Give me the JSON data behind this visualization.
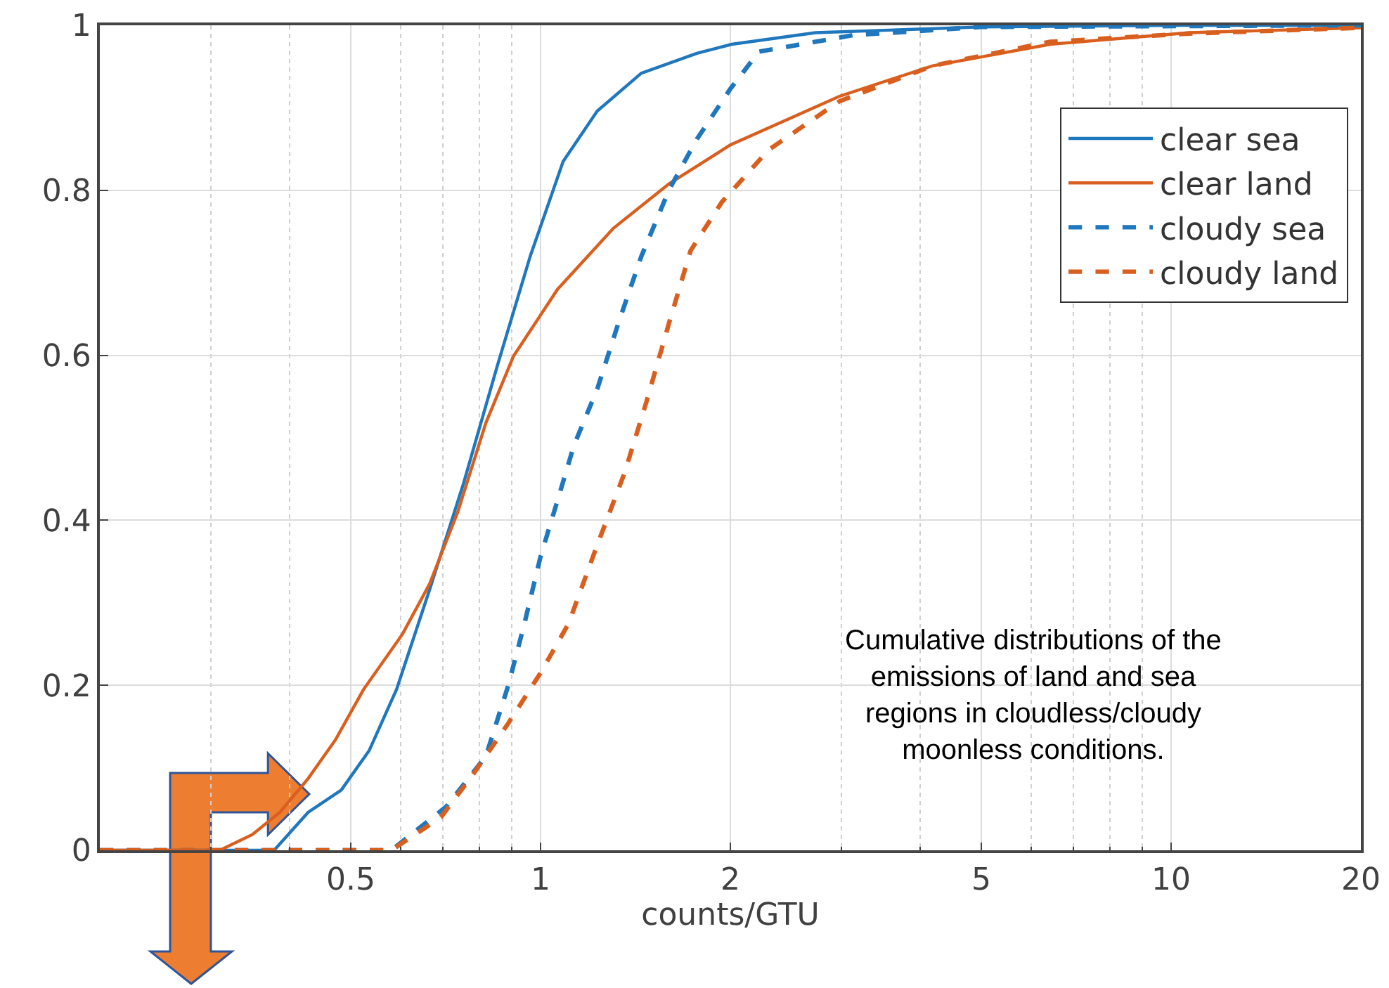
{
  "chart_data": {
    "type": "line",
    "xlabel": "counts/GTU",
    "log": "x",
    "grid": true,
    "legend": "top right",
    "xlim": [
      0.2,
      20
    ],
    "ylim": [
      0,
      1
    ],
    "xticks": [
      {
        "value": 0.3,
        "label": null
      },
      {
        "value": 0.4,
        "label": null
      },
      0.5,
      {
        "value": 0.6,
        "label": null
      },
      {
        "value": 0.7,
        "label": null
      },
      {
        "value": 0.8,
        "label": null
      },
      {
        "value": 0.9,
        "label": null
      },
      1,
      2,
      {
        "value": 3,
        "label": null
      },
      {
        "value": 4,
        "label": null
      },
      5,
      {
        "value": 6,
        "label": null
      },
      {
        "value": 7,
        "label": null
      },
      {
        "value": 8,
        "label": null
      },
      {
        "value": 9,
        "label": null
      },
      10,
      20
    ],
    "yticks": [
      0,
      0.2,
      0.4,
      0.6,
      0.8,
      1
    ],
    "series": [
      {
        "name": "clear sea",
        "color": "#1f77bd",
        "line_style": "solid",
        "x": [
          0.2,
          0.33,
          0.378,
          0.428,
          0.483,
          0.535,
          0.591,
          0.667,
          0.755,
          0.853,
          0.963,
          1.086,
          1.23,
          1.445,
          1.77,
          2.01,
          2.73,
          5,
          10,
          20
        ],
        "values": [
          0,
          0,
          0,
          0.046,
          0.073,
          0.121,
          0.195,
          0.316,
          0.445,
          0.586,
          0.72,
          0.835,
          0.896,
          0.942,
          0.966,
          0.977,
          0.991,
          0.998,
          1,
          1
        ]
      },
      {
        "name": "clear land",
        "color": "#d95f1f",
        "line_style": "solid",
        "x": [
          0.2,
          0.31,
          0.349,
          0.386,
          0.428,
          0.473,
          0.524,
          0.604,
          0.667,
          0.739,
          0.819,
          0.906,
          1.064,
          1.305,
          1.6,
          2.0,
          2.98,
          4.19,
          6.43,
          10.7,
          20
        ],
        "values": [
          0,
          0,
          0.019,
          0.046,
          0.087,
          0.134,
          0.195,
          0.262,
          0.323,
          0.41,
          0.518,
          0.599,
          0.68,
          0.754,
          0.808,
          0.855,
          0.914,
          0.951,
          0.977,
          0.991,
          0.997
        ]
      },
      {
        "name": "cloudy sea",
        "color": "#1f77bd",
        "line_style": "dashed",
        "x": [
          0.2,
          0.58,
          0.709,
          0.819,
          0.889,
          0.943,
          1.0,
          1.064,
          1.13,
          1.23,
          1.33,
          1.445,
          1.6,
          1.77,
          2.0,
          2.22,
          3.13,
          5,
          20
        ],
        "values": [
          0,
          0,
          0.053,
          0.114,
          0.2,
          0.275,
          0.356,
          0.424,
          0.491,
          0.559,
          0.64,
          0.72,
          0.801,
          0.862,
          0.923,
          0.968,
          0.988,
          0.998,
          1
        ]
      },
      {
        "name": "cloudy land",
        "color": "#d95f1f",
        "line_style": "dashed",
        "x": [
          0.2,
          0.58,
          0.695,
          0.785,
          0.889,
          1.0,
          1.108,
          1.23,
          1.36,
          1.474,
          1.6,
          1.73,
          1.94,
          2.3,
          2.98,
          4.19,
          6.43,
          10.7,
          20
        ],
        "values": [
          0,
          0,
          0.04,
          0.094,
          0.154,
          0.215,
          0.275,
          0.37,
          0.458,
          0.545,
          0.64,
          0.727,
          0.786,
          0.849,
          0.908,
          0.951,
          0.98,
          0.99,
          0.997
        ]
      }
    ],
    "annotations": [
      {
        "text": "Cumulative distributions of the\nemissions of land and sea\nregions in cloudless/cloudy\nmoonless conditions."
      }
    ]
  }
}
